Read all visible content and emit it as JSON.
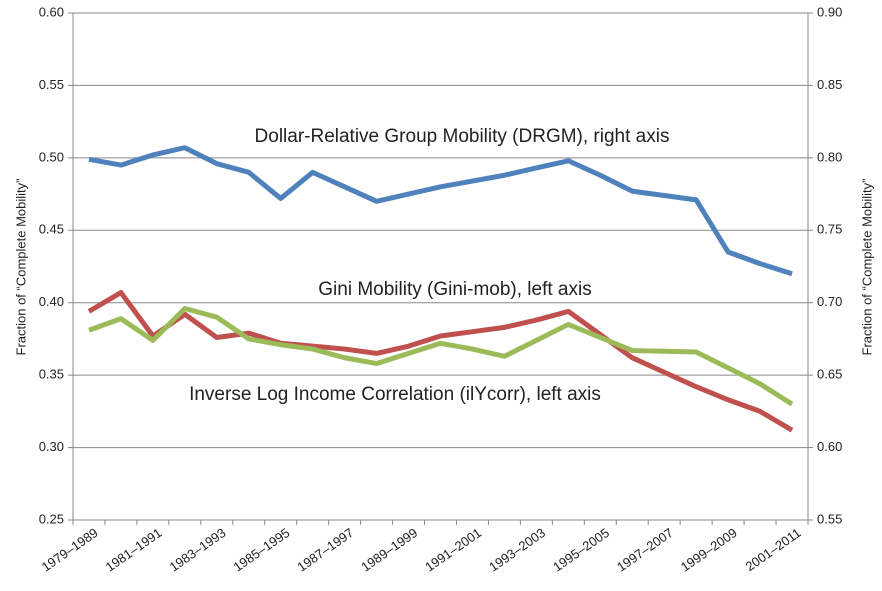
{
  "chart_data": {
    "type": "line",
    "categories": [
      "1979–1989",
      null,
      "1981–1991",
      null,
      "1983–1993",
      null,
      "1985–1995",
      null,
      "1987–1997",
      null,
      "1989–1999",
      null,
      "1991–2001",
      null,
      "1993–2003",
      null,
      "1995–2005",
      null,
      "1997–2007",
      null,
      "1999–2009",
      null,
      "2001–2011"
    ],
    "y_label": "Fraction of “Complete Mobility”",
    "y2_label": "Fraction of “Complete Mobility”",
    "ylim": [
      0.25,
      0.6
    ],
    "yticks": [
      {
        "value": 0.25,
        "label": "0.25"
      },
      {
        "value": 0.3,
        "label": "0.30"
      },
      {
        "value": 0.35,
        "label": "0.35"
      },
      {
        "value": 0.4,
        "label": "0.40"
      },
      {
        "value": 0.45,
        "label": "0.45"
      },
      {
        "value": 0.5,
        "label": "0.50"
      },
      {
        "value": 0.55,
        "label": "0.55"
      },
      {
        "value": 0.6,
        "label": "0.60"
      }
    ],
    "y2lim": [
      0.55,
      0.9
    ],
    "y2ticks": [
      {
        "value": 0.55,
        "label": "0.55"
      },
      {
        "value": 0.6,
        "label": "0.60"
      },
      {
        "value": 0.65,
        "label": "0.65"
      },
      {
        "value": 0.7,
        "label": "0.70"
      },
      {
        "value": 0.75,
        "label": "0.75"
      },
      {
        "value": 0.8,
        "label": "0.80"
      },
      {
        "value": 0.85,
        "label": "0.85"
      },
      {
        "value": 0.9,
        "label": "0.90"
      }
    ],
    "grid": true,
    "series": [
      {
        "name": "Dollar-Relative Group Mobility (DRGM), right axis",
        "color": "#4f81bd",
        "axis": "y2",
        "values": [
          0.799,
          0.795,
          0.802,
          0.807,
          0.796,
          0.79,
          0.772,
          0.79,
          0.78,
          0.77,
          0.775,
          0.78,
          0.784,
          0.788,
          0.793,
          0.798,
          0.788,
          0.777,
          0.774,
          0.771,
          0.735,
          0.727,
          0.72
        ]
      },
      {
        "name": "Gini Mobility (Gini-mob), left axis",
        "color": "#c0504d",
        "values": [
          0.394,
          0.407,
          0.377,
          0.392,
          0.376,
          0.379,
          0.372,
          0.37,
          0.368,
          0.365,
          0.37,
          0.377,
          0.38,
          0.383,
          0.388,
          0.394,
          0.378,
          0.362,
          0.352,
          0.342,
          0.333,
          0.325,
          0.312
        ]
      },
      {
        "name": "Inverse Log Income Correlation (ilYcorr), left axis",
        "color": "#9bbb59",
        "values": [
          0.381,
          0.389,
          0.374,
          0.396,
          0.39,
          0.375,
          0.371,
          0.368,
          0.362,
          0.358,
          0.365,
          0.372,
          0.368,
          0.363,
          0.374,
          0.385,
          0.376,
          0.367,
          0.3665,
          0.366,
          0.355,
          0.344,
          0.33
        ]
      }
    ]
  }
}
